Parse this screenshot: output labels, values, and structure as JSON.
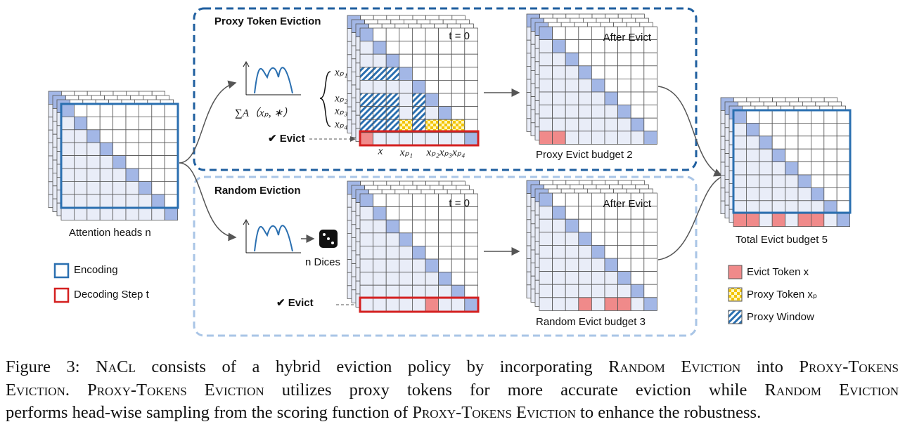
{
  "figure": {
    "proxy_title": "Proxy Token Eviction",
    "random_title": "Random Eviction",
    "t0": [
      "t = 0",
      "t = 0"
    ],
    "after_evict": [
      "After Evict",
      "After Evict"
    ],
    "attention_heads": "Attention heads n",
    "score_formula": "∑A（xₚ, ∗）",
    "evict": [
      "✔ Evict",
      "✔ Evict"
    ],
    "row_labels": [
      "xₚ₁",
      "xₚ₂",
      "xₚ₃",
      "xₚ₄"
    ],
    "col_labels": [
      "x",
      "xₚ₁",
      "xₚ₂xₚ₃xₚ₄"
    ],
    "proxy_budget": "Proxy Evict budget 2",
    "random_budget": "Random Evict budget 3",
    "total_budget": "Total Evict budget 5",
    "dices": "n Dices",
    "legend_left": [
      "Encoding",
      "Decoding Step t"
    ],
    "legend_right": [
      "Evict Token x",
      "Proxy Token xₚ",
      "Proxy Window"
    ]
  },
  "caption": {
    "lines": [
      [
        {
          "text": "Figure 3: "
        },
        {
          "text": "NaCl",
          "small_caps": true
        },
        {
          "text": " consists of a hybrid eviction policy by incorporating "
        },
        {
          "text": "Random Eviction",
          "small_caps": true
        },
        {
          "text": " into "
        },
        {
          "text": "Proxy-Tokens",
          "small_caps": true
        }
      ],
      [
        {
          "text": "Eviction",
          "small_caps": true
        },
        {
          "text": ". "
        },
        {
          "text": "Proxy-Tokens Eviction",
          "small_caps": true
        },
        {
          "text": " utilizes proxy tokens for more accurate eviction while "
        },
        {
          "text": "Random Eviction",
          "small_caps": true
        }
      ],
      [
        {
          "text": "performs head-wise sampling from the scoring function of "
        },
        {
          "text": "Proxy-Tokens Eviction",
          "small_caps": true
        },
        {
          "text": " to enhance the robustness."
        }
      ]
    ]
  }
}
